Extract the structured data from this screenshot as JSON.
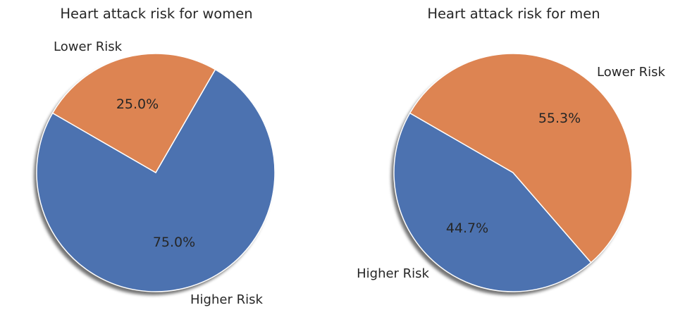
{
  "chart_data": [
    {
      "type": "pie",
      "title": "Heart attack risk for women",
      "categories": [
        "Higher Risk",
        "Lower Risk"
      ],
      "values": [
        75.0,
        25.0
      ],
      "percent_labels": [
        "75.0%",
        "25.0%"
      ],
      "colors": [
        "#4c72b0",
        "#dd8452"
      ],
      "shadow": true,
      "legend": "none"
    },
    {
      "type": "pie",
      "title": "Heart attack risk for men",
      "categories": [
        "Higher Risk",
        "Lower Risk"
      ],
      "values": [
        44.7,
        55.3
      ],
      "percent_labels": [
        "44.7%",
        "55.3%"
      ],
      "colors": [
        "#4c72b0",
        "#dd8452"
      ],
      "shadow": true,
      "legend": "none"
    }
  ]
}
